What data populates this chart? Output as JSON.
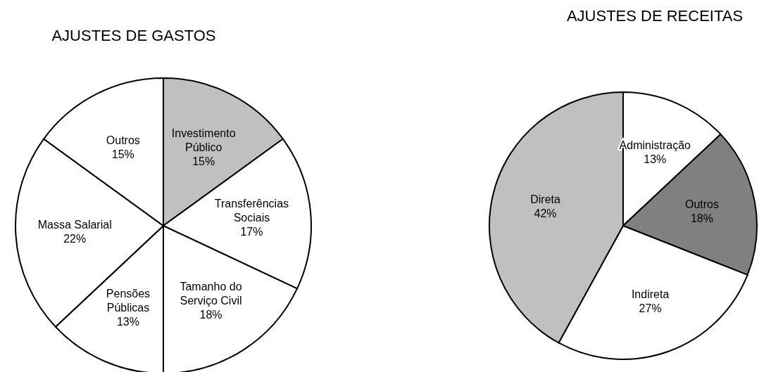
{
  "chart_data": [
    {
      "type": "pie",
      "title": "AJUSTES DE GASTOS",
      "categories": [
        "Investimento Público",
        "Transferências Sociais",
        "Tamanho do Serviço Civil",
        "Pensões Públicas",
        "Massa Salarial",
        "Outros"
      ],
      "values": [
        15,
        17,
        18,
        13,
        22,
        15
      ],
      "value_labels": [
        "15%",
        "17%",
        "18%",
        "13%",
        "22%",
        "15%"
      ],
      "colors": [
        "#c0c0c0",
        "#ffffff",
        "#ffffff",
        "#ffffff",
        "#ffffff",
        "#ffffff"
      ]
    },
    {
      "type": "pie",
      "title": "AJUSTES DE RECEITAS",
      "categories": [
        "Administração",
        "Outros",
        "Indireta",
        "Direta"
      ],
      "values": [
        13,
        18,
        27,
        42
      ],
      "value_labels": [
        "13%",
        "18%",
        "27%",
        "42%"
      ],
      "colors": [
        "#ffffff",
        "#808080",
        "#ffffff",
        "#c0c0c0"
      ]
    }
  ]
}
